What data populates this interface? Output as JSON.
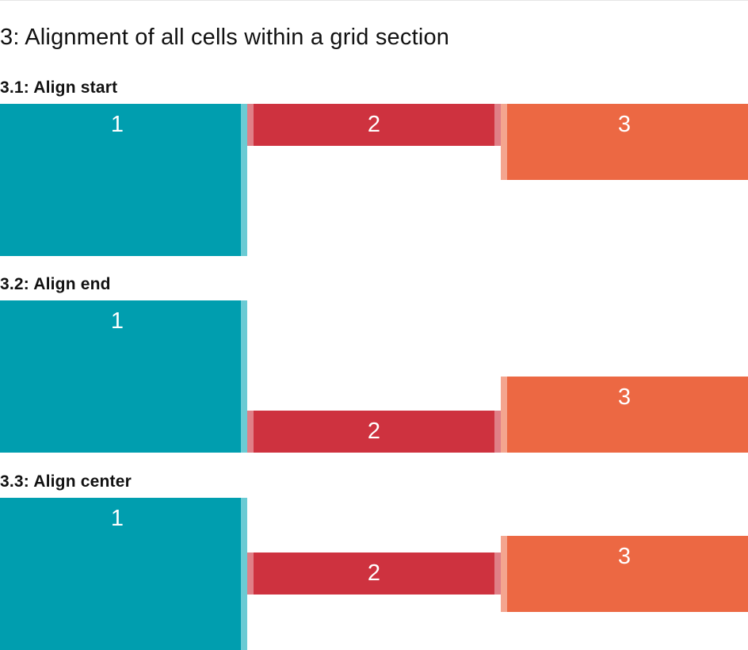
{
  "page": {
    "title": "3: Alignment of all cells within a grid section"
  },
  "colors": {
    "cell1": "#009EAF",
    "cell1_edge": "#6ACBD4",
    "cell2": "#CE323F",
    "cell2_edge": "#E07F87",
    "cell3": "#EC6843",
    "cell3_edge": "#F4A58F"
  },
  "sections": [
    {
      "title": "3.1: Align start",
      "alignment": "start",
      "cells": [
        {
          "label": "1"
        },
        {
          "label": "2"
        },
        {
          "label": "3"
        }
      ]
    },
    {
      "title": "3.2: Align end",
      "alignment": "end",
      "cells": [
        {
          "label": "1"
        },
        {
          "label": "2"
        },
        {
          "label": "3"
        }
      ]
    },
    {
      "title": "3.3: Align center",
      "alignment": "center",
      "cells": [
        {
          "label": "1"
        },
        {
          "label": "2"
        },
        {
          "label": "3"
        }
      ]
    }
  ]
}
